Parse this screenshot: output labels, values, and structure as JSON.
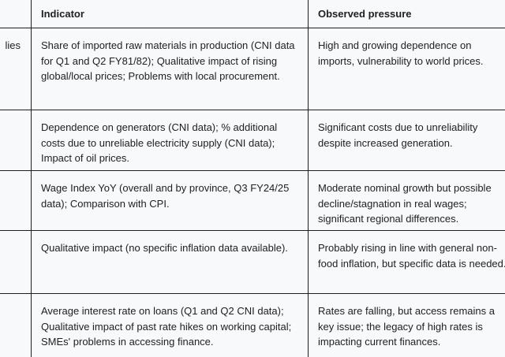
{
  "table": {
    "header": {
      "col_label": "",
      "indicator": "Indicator",
      "observed": "Observed pressure"
    },
    "rows": [
      {
        "label_fragment": "lies",
        "indicator": "Share of imported raw materials in production (CNI data for Q1 and Q2 FY81/82); Qualitative impact of rising global/local prices; Problems with local procurement.",
        "observed": "High and growing dependence on imports, vulnerability to world prices."
      },
      {
        "label_fragment": "",
        "indicator": "Dependence on generators (CNI data); % additional costs due to unreliable electricity supply (CNI data); Impact of oil prices.",
        "observed": "Significant costs due to unreliability despite increased generation."
      },
      {
        "label_fragment": "",
        "indicator": "Wage Index YoY (overall and by province, Q3 FY24/25 data); Comparison with CPI.",
        "observed": "Moderate nominal growth but possible decline/stagnation in real wages; significant regional differences."
      },
      {
        "label_fragment": "",
        "indicator": "Qualitative impact (no specific inflation data available).",
        "observed": "Probably rising in line with general non-food inflation, but specific data is needed."
      },
      {
        "label_fragment": "",
        "indicator": "Average interest rate on loans (Q1 and Q2 CNI data); Qualitative impact of past rate hikes on working capital; SMEs' problems in accessing finance.",
        "observed": "Rates are falling, but access remains a key issue; the legacy of high rates is impacting current finances."
      }
    ],
    "colors": {
      "background": "#f8f9fa",
      "border": "#1f1f1f",
      "text": "#202124"
    }
  }
}
